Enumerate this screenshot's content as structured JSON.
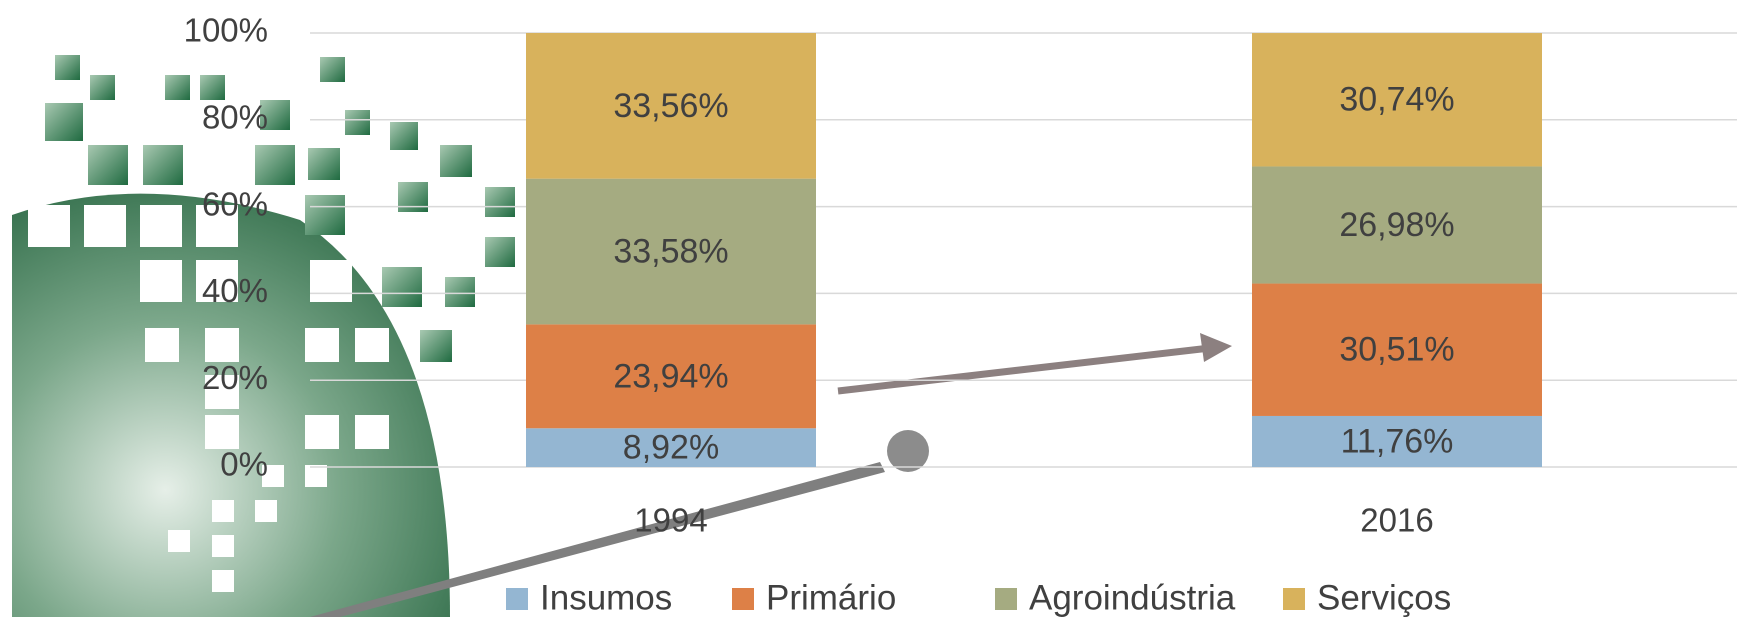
{
  "chart_data": {
    "type": "stacked-bar",
    "categories": [
      "1994",
      "2016"
    ],
    "series": [
      {
        "name": "Insumos",
        "color": "#94b6d2",
        "values": [
          8.92,
          11.76
        ],
        "value_labels": [
          "8,92%",
          "11,76%"
        ]
      },
      {
        "name": "Primário",
        "color": "#dd8047",
        "values": [
          23.94,
          30.51
        ],
        "value_labels": [
          "23,94%",
          "30,51%"
        ]
      },
      {
        "name": "Agroindústria",
        "color": "#a5ab81",
        "values": [
          33.58,
          26.98
        ],
        "value_labels": [
          "33,58%",
          "26,98%"
        ]
      },
      {
        "name": "Serviços",
        "color": "#d8b25c",
        "values": [
          33.56,
          30.74
        ],
        "value_labels": [
          "33,56%",
          "30,74%"
        ]
      }
    ],
    "ylim": [
      0,
      100
    ],
    "yticks": [
      {
        "value": 0,
        "label": "0%"
      },
      {
        "value": 20,
        "label": "20%"
      },
      {
        "value": 40,
        "label": "40%"
      },
      {
        "value": 60,
        "label": "60%"
      },
      {
        "value": 80,
        "label": "80%"
      },
      {
        "value": 100,
        "label": "100%"
      }
    ],
    "grid": true,
    "legend": "bottom"
  }
}
